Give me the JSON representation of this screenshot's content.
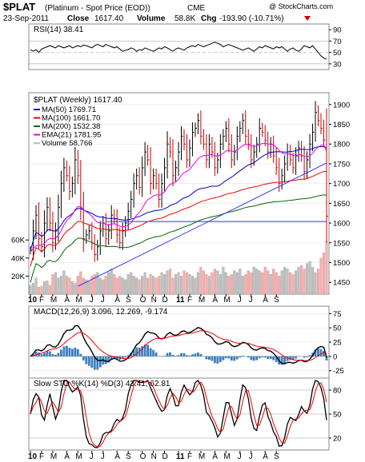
{
  "header": {
    "symbol": "$PLAT",
    "description": "(Platinum  - Spot Price (EOD))",
    "exchange": "CME",
    "date": "23-Sep-2011",
    "close_label": "Close",
    "close": "1617.40",
    "volume_label": "Volume",
    "volume": "58.8K",
    "chg_label": "Chg",
    "chg": "-193.90 (-10.71%)",
    "watermark": "@ StockCharts.com"
  },
  "colors": {
    "up": "#000000",
    "down": "#cc0000",
    "ma50": "#0000cc",
    "ma100": "#ee0000",
    "ma200": "#006600",
    "ema21": "#ee00ee",
    "vol_up": "#c0c0c0",
    "vol_down": "#f0b0b0",
    "rsi_fill": "#4a9a4a",
    "hist": "#3a80c0",
    "trendline": "#3333ff"
  },
  "chart_data": [
    {
      "type": "line",
      "name": "RSI panel",
      "title": "RSI(14) 38.41",
      "y_ticks": [
        "90",
        "70",
        "50",
        "30"
      ],
      "ylim": [
        20,
        100
      ],
      "guides": [
        70,
        50,
        30
      ],
      "values": [
        55,
        52,
        55,
        50,
        56,
        58,
        60,
        62,
        60,
        58,
        62,
        60,
        58,
        60,
        62,
        58,
        60,
        62,
        60,
        63,
        62,
        60,
        58,
        62,
        64,
        62,
        60,
        64,
        62,
        60,
        58,
        60,
        56,
        52,
        54,
        55,
        58,
        56,
        52,
        55,
        54,
        58,
        56,
        54,
        52,
        55,
        58,
        56,
        60,
        58,
        55,
        52,
        56,
        58,
        56,
        54,
        58,
        60,
        62,
        60,
        64,
        62,
        60,
        62,
        64,
        66,
        68,
        66,
        64,
        60,
        62,
        64,
        62,
        60,
        58,
        56,
        54,
        56,
        58,
        55,
        52,
        56,
        60,
        58,
        62,
        60,
        58,
        56,
        60,
        58,
        60,
        56,
        52,
        56,
        58,
        54,
        52,
        56,
        62,
        60,
        58,
        62,
        56,
        50,
        44,
        40,
        38.41
      ]
    },
    {
      "type": "candlestick",
      "name": "Price panel",
      "title": "$PLAT (Weekly) 1617.40",
      "y_ticks": [
        "1900",
        "1850",
        "1800",
        "1750",
        "1700",
        "1650",
        "1600",
        "1550",
        "1500",
        "1450"
      ],
      "volume_ticks": [
        "60K",
        "40K",
        "20K"
      ],
      "ylim": [
        1420,
        1930
      ],
      "legend": [
        {
          "label": "MA(50) 1769.71",
          "color": "#0000cc"
        },
        {
          "label": "MA(100) 1661.70",
          "color": "#ee0000"
        },
        {
          "label": "MA(200) 1532.38",
          "color": "#006600"
        },
        {
          "label": "EMA(21) 1781.95",
          "color": "#ee00ee"
        },
        {
          "label": "Volume 58,766",
          "color": "#c0c0c0"
        }
      ],
      "close": [
        1530,
        1580,
        1620,
        1560,
        1540,
        1600,
        1640,
        1600,
        1550,
        1580,
        1640,
        1700,
        1740,
        1720,
        1680,
        1700,
        1760,
        1720,
        1640,
        1560,
        1570,
        1580,
        1550,
        1520,
        1540,
        1580,
        1600,
        1560,
        1580,
        1620,
        1610,
        1570,
        1550,
        1580,
        1600,
        1630,
        1660,
        1700,
        1720,
        1690,
        1740,
        1780,
        1760,
        1700,
        1720,
        1700,
        1660,
        1700,
        1740,
        1800,
        1780,
        1720,
        1740,
        1780,
        1820,
        1800,
        1760,
        1790,
        1830,
        1840,
        1860,
        1820,
        1800,
        1760,
        1800,
        1780,
        1740,
        1760,
        1800,
        1820,
        1840,
        1800,
        1760,
        1780,
        1820,
        1840,
        1860,
        1820,
        1800,
        1760,
        1780,
        1800,
        1840,
        1830,
        1810,
        1780,
        1800,
        1770,
        1740,
        1700,
        1720,
        1750,
        1780,
        1760,
        1740,
        1770,
        1790,
        1770,
        1730,
        1760,
        1800,
        1830,
        1880,
        1860,
        1840,
        1810,
        1617.4
      ],
      "volume": [
        10,
        12,
        18,
        8,
        9,
        14,
        15,
        10,
        22,
        24,
        18,
        20,
        26,
        20,
        18,
        14,
        12,
        20,
        25,
        18,
        16,
        14,
        20,
        22,
        24,
        18,
        16,
        20,
        24,
        28,
        22,
        18,
        20,
        18,
        16,
        22,
        24,
        20,
        18,
        16,
        20,
        24,
        18,
        22,
        20,
        18,
        20,
        24,
        22,
        26,
        28,
        18,
        22,
        24,
        20,
        26,
        24,
        22,
        20,
        18,
        24,
        30,
        26,
        22,
        20,
        24,
        28,
        26,
        22,
        30,
        24,
        20,
        22,
        26,
        24,
        28,
        20,
        22,
        26,
        24,
        30,
        28,
        26,
        24,
        30,
        26,
        22,
        28,
        24,
        20,
        26,
        30,
        28,
        24,
        22,
        26,
        30,
        32,
        28,
        34,
        36,
        30,
        24,
        28,
        40,
        46,
        58.8
      ],
      "trendlines": [
        {
          "name": "Horizontal support",
          "points": [
            [
              27,
              1604
            ],
            [
              106,
              1604
            ]
          ]
        },
        {
          "name": "Rising trendline",
          "points": [
            [
              17,
              1440
            ],
            [
              106,
              1752
            ]
          ]
        }
      ]
    },
    {
      "type": "line",
      "name": "MACD panel",
      "title": "MACD(12,26,9) 3.096, 12.269, -9.174",
      "y_ticks": [
        "75",
        "50",
        "25",
        "0",
        "-25"
      ],
      "ylim": [
        -38,
        88
      ]
    },
    {
      "type": "line",
      "name": "Slow Stochastic panel",
      "title": "Slow STO %K(14) %D(3) 43.41, 62.81",
      "y_ticks": [
        "80",
        "50",
        "20"
      ],
      "ylim": [
        5,
        95
      ],
      "guides": [
        80,
        50,
        20
      ]
    }
  ],
  "x_axis": {
    "labels": [
      {
        "text": "10",
        "bold": true,
        "index": 0
      },
      {
        "text": "F",
        "index": 4
      },
      {
        "text": "M",
        "index": 8
      },
      {
        "text": "A",
        "index": 13
      },
      {
        "text": "M",
        "index": 17
      },
      {
        "text": "J",
        "index": 22
      },
      {
        "text": "J",
        "index": 26
      },
      {
        "text": "A",
        "index": 31
      },
      {
        "text": "S",
        "index": 35
      },
      {
        "text": "O",
        "index": 40
      },
      {
        "text": "N",
        "index": 44
      },
      {
        "text": "D",
        "index": 48
      },
      {
        "text": "11",
        "bold": true,
        "index": 53
      },
      {
        "text": "F",
        "index": 57
      },
      {
        "text": "M",
        "index": 61
      },
      {
        "text": "A",
        "index": 66
      },
      {
        "text": "M",
        "index": 70
      },
      {
        "text": "J",
        "index": 75
      },
      {
        "text": "J",
        "index": 79
      },
      {
        "text": "A",
        "index": 84
      },
      {
        "text": "S",
        "index": 88
      }
    ]
  }
}
